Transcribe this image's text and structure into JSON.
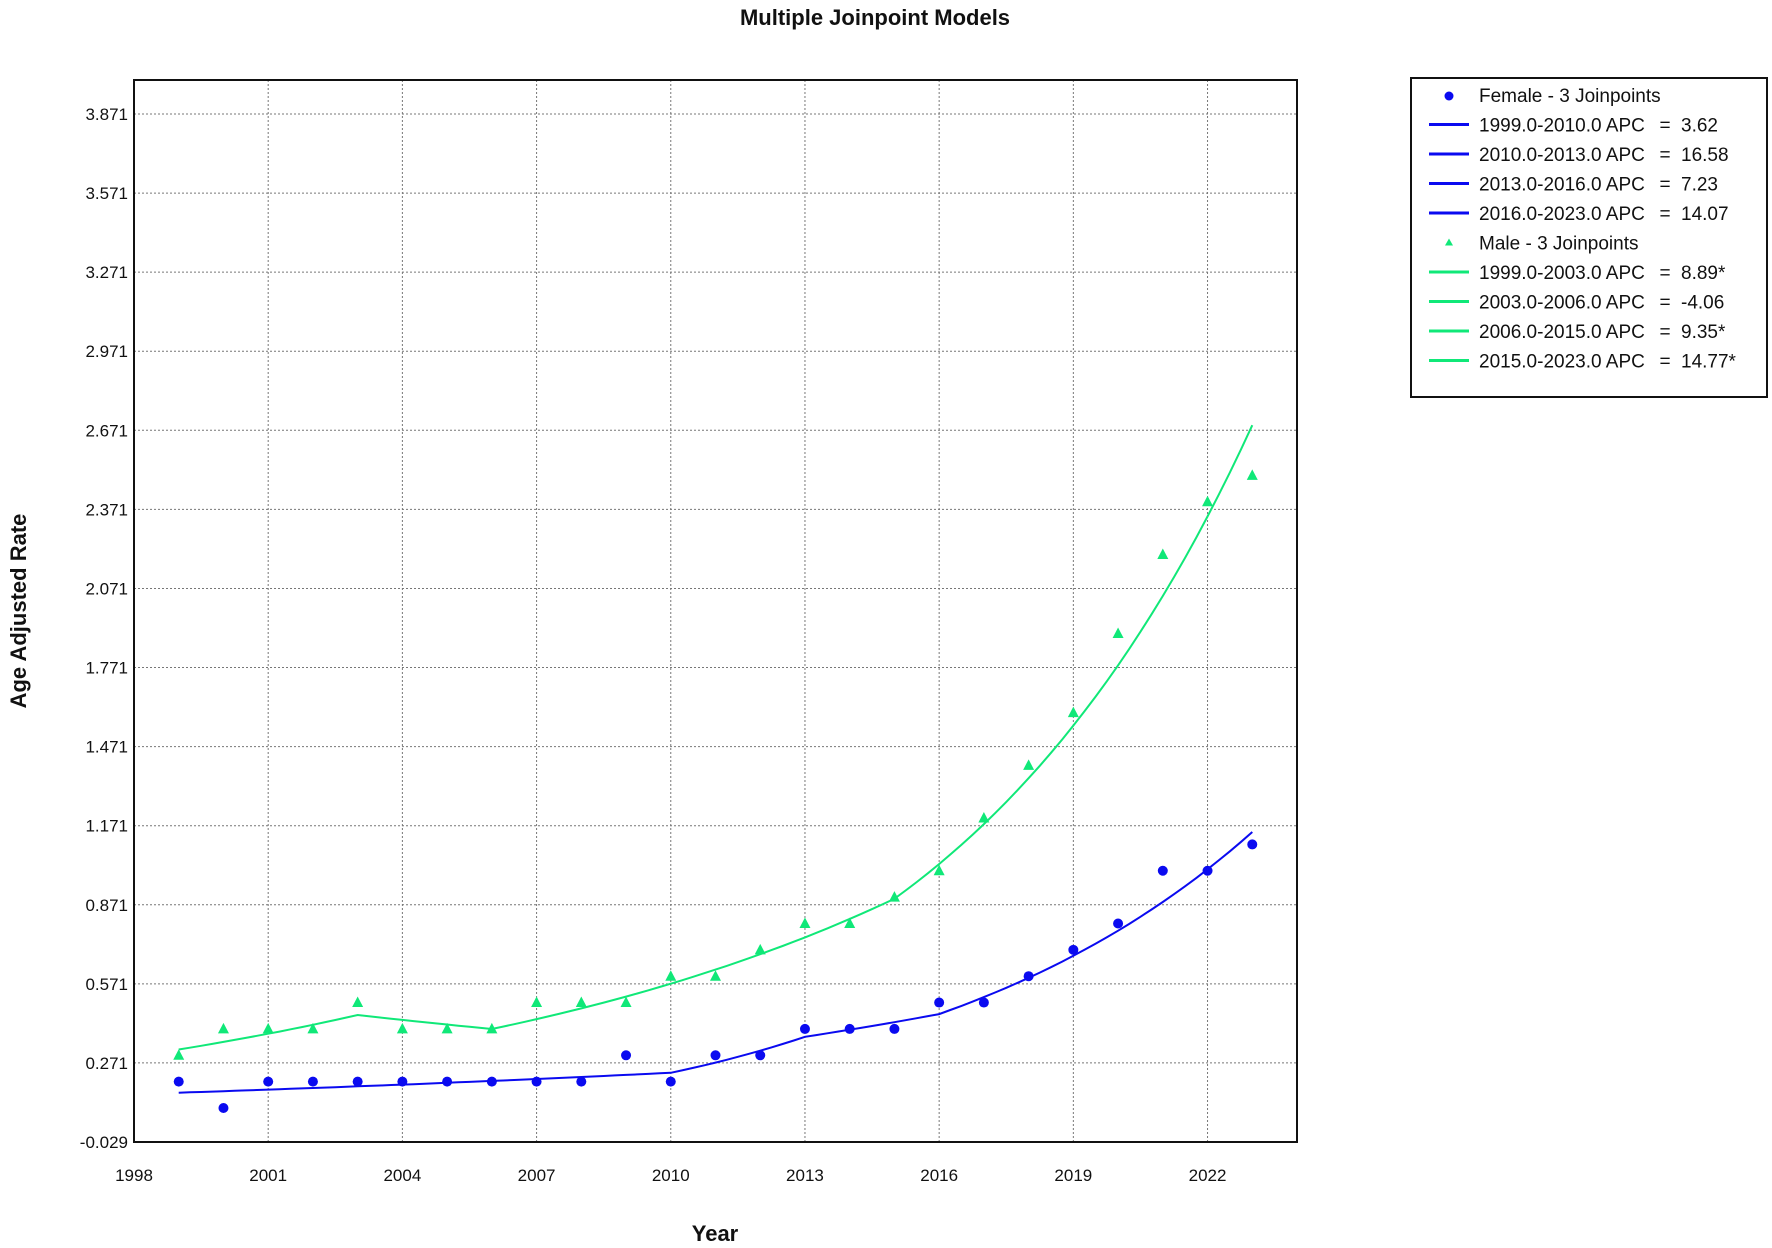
{
  "chart_data": {
    "type": "line",
    "title": "Multiple Joinpoint Models",
    "xlabel": "Year",
    "ylabel": "Age Adjusted Rate",
    "xlim": [
      1998,
      2024
    ],
    "ylim": [
      -0.029,
      4.0
    ],
    "xticks": [
      1998,
      2001,
      2004,
      2007,
      2010,
      2013,
      2016,
      2019,
      2022
    ],
    "yticks": [
      -0.029,
      0.271,
      0.571,
      0.871,
      1.171,
      1.471,
      1.771,
      2.071,
      2.371,
      2.671,
      2.971,
      3.271,
      3.571,
      3.871
    ],
    "ytick_labels": [
      "-0.029",
      "0.271",
      "0.571",
      "0.871",
      "1.171",
      "1.471",
      "1.771",
      "2.071",
      "2.371",
      "2.671",
      "2.971",
      "3.271",
      "3.571",
      "3.871"
    ],
    "grid": true,
    "legend_position": "outside-top-right",
    "x": [
      1999,
      2000,
      2001,
      2002,
      2003,
      2004,
      2005,
      2006,
      2007,
      2008,
      2009,
      2010,
      2011,
      2012,
      2013,
      2014,
      2015,
      2016,
      2017,
      2018,
      2019,
      2020,
      2021,
      2022,
      2023
    ],
    "series": [
      {
        "name": "Female - 3 Joinpoints",
        "marker": "circle",
        "color": "#0a0af0",
        "observed": [
          0.2,
          0.1,
          0.2,
          0.2,
          0.2,
          0.2,
          0.2,
          0.2,
          0.2,
          0.2,
          0.3,
          0.2,
          0.3,
          0.3,
          0.4,
          0.4,
          0.4,
          0.5,
          0.5,
          0.6,
          0.7,
          0.8,
          1.0,
          1.0,
          1.1
        ],
        "fit_start": 0.158,
        "segments": [
          {
            "label": "1999.0-2010.0 APC",
            "eq": "=",
            "value": "3.62",
            "from": 1999,
            "to": 2010,
            "apc": 3.62
          },
          {
            "label": "2010.0-2013.0 APC",
            "eq": "=",
            "value": "16.58",
            "from": 2010,
            "to": 2013,
            "apc": 16.58
          },
          {
            "label": "2013.0-2016.0 APC",
            "eq": "=",
            "value": "7.23",
            "from": 2013,
            "to": 2016,
            "apc": 7.23
          },
          {
            "label": "2016.0-2023.0 APC",
            "eq": "=",
            "value": "14.07",
            "from": 2016,
            "to": 2023,
            "apc": 14.07
          }
        ]
      },
      {
        "name": "Male - 3 Joinpoints",
        "marker": "triangle",
        "color": "#10e878",
        "observed": [
          0.3,
          0.4,
          0.4,
          0.4,
          0.5,
          0.4,
          0.4,
          0.4,
          0.5,
          0.5,
          0.5,
          0.6,
          0.6,
          0.7,
          0.8,
          0.8,
          0.9,
          1.0,
          1.2,
          1.4,
          1.6,
          1.9,
          2.2,
          2.4,
          2.5
        ],
        "fit_start": 0.322,
        "segments": [
          {
            "label": "1999.0-2003.0 APC",
            "eq": "=",
            "value": "8.89*",
            "from": 1999,
            "to": 2003,
            "apc": 8.89
          },
          {
            "label": "2003.0-2006.0 APC",
            "eq": "=",
            "value": "-4.06",
            "from": 2003,
            "to": 2006,
            "apc": -4.06
          },
          {
            "label": "2006.0-2015.0 APC",
            "eq": "=",
            "value": "9.35*",
            "from": 2006,
            "to": 2015,
            "apc": 9.35
          },
          {
            "label": "2015.0-2023.0 APC",
            "eq": "=",
            "value": "14.77*",
            "from": 2015,
            "to": 2023,
            "apc": 14.77
          }
        ]
      }
    ]
  }
}
